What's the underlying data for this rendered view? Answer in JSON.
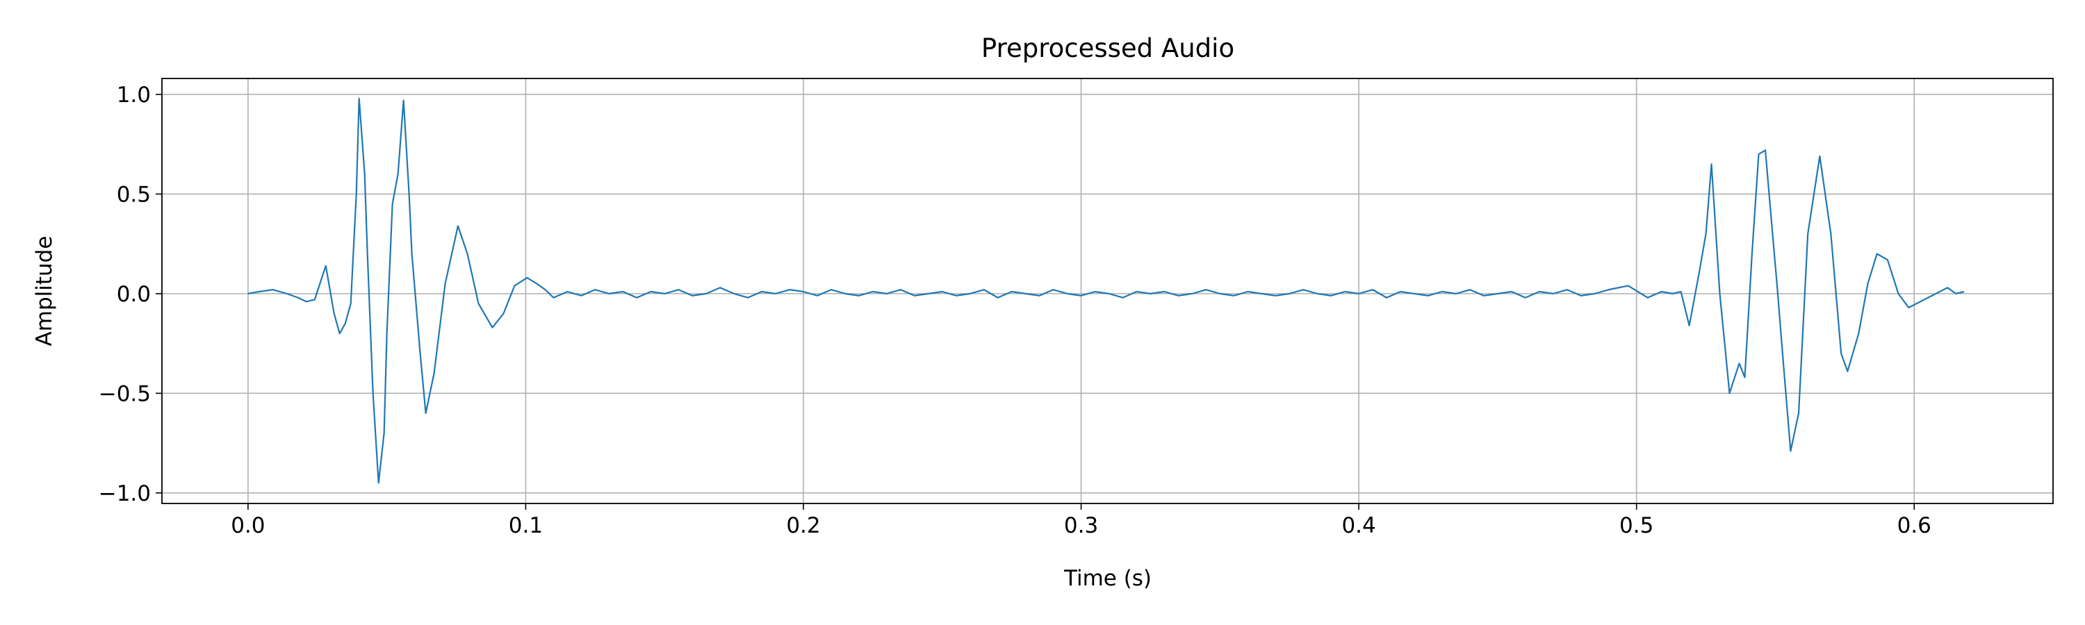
{
  "chart_data": {
    "type": "line",
    "title": "Preprocessed Audio",
    "x_label": "Time (s)",
    "y_label": "Amplitude",
    "color": "#1f77b4",
    "grid": true,
    "xlim": [
      -0.031,
      0.65
    ],
    "ylim": [
      -1.053,
      1.08
    ],
    "xticks": [
      {
        "value": 0,
        "label": "0.0"
      },
      0.1,
      0.2,
      0.3,
      0.4,
      0.5,
      0.6
    ],
    "yticks": [
      {
        "value": -1,
        "label": "−1.0"
      },
      {
        "value": -0.5,
        "label": "−0.5"
      },
      {
        "value": 0,
        "label": "0.0"
      },
      0.5,
      {
        "value": 1,
        "label": "1.0"
      }
    ],
    "x": [
      0,
      0.004,
      0.009,
      0.014,
      0.018,
      0.021,
      0.024,
      0.028,
      0.031,
      0.033,
      0.035,
      0.037,
      0.039,
      0.04,
      0.042,
      0.043,
      0.045,
      0.047,
      0.049,
      0.05,
      0.052,
      0.054,
      0.056,
      0.058,
      0.059,
      0.062,
      0.064,
      0.067,
      0.071,
      0.0756,
      0.079,
      0.083,
      0.088,
      0.092,
      0.096,
      0.1005,
      0.104,
      0.107,
      0.11,
      0.115,
      0.12,
      0.125,
      0.13,
      0.135,
      0.14,
      0.145,
      0.15,
      0.155,
      0.16,
      0.165,
      0.17,
      0.175,
      0.18,
      0.185,
      0.19,
      0.195,
      0.2,
      0.205,
      0.21,
      0.215,
      0.22,
      0.225,
      0.23,
      0.235,
      0.24,
      0.245,
      0.25,
      0.255,
      0.26,
      0.265,
      0.27,
      0.275,
      0.28,
      0.285,
      0.29,
      0.295,
      0.3,
      0.305,
      0.31,
      0.315,
      0.32,
      0.325,
      0.33,
      0.335,
      0.34,
      0.345,
      0.35,
      0.355,
      0.36,
      0.365,
      0.37,
      0.375,
      0.38,
      0.385,
      0.39,
      0.395,
      0.4,
      0.405,
      0.41,
      0.415,
      0.42,
      0.425,
      0.43,
      0.435,
      0.44,
      0.445,
      0.45,
      0.455,
      0.46,
      0.465,
      0.47,
      0.475,
      0.48,
      0.485,
      0.49,
      0.497,
      0.504,
      0.509,
      0.513,
      0.516,
      0.519,
      0.5225,
      0.525,
      0.527,
      0.53,
      0.5335,
      0.537,
      0.539,
      0.5416,
      0.544,
      0.5464,
      0.549,
      0.5507,
      0.5526,
      0.5555,
      0.5584,
      0.5617,
      0.566,
      0.57,
      0.5737,
      0.576,
      0.58,
      0.5833,
      0.5866,
      0.5904,
      0.5943,
      0.598,
      0.605,
      0.612,
      0.615,
      0.618
    ],
    "values": [
      0,
      0.01,
      0.02,
      0.0,
      -0.02,
      -0.04,
      -0.03,
      0.14,
      -0.1,
      -0.2,
      -0.15,
      -0.05,
      0.5,
      0.98,
      0.6,
      0.2,
      -0.5,
      -0.95,
      -0.7,
      -0.2,
      0.45,
      0.6,
      0.97,
      0.5,
      0.2,
      -0.3,
      -0.6,
      -0.4,
      0.05,
      0.34,
      0.2,
      -0.05,
      -0.17,
      -0.1,
      0.04,
      0.08,
      0.05,
      0.02,
      -0.02,
      0.01,
      -0.01,
      0.02,
      0.0,
      0.01,
      -0.02,
      0.01,
      0.0,
      0.02,
      -0.01,
      0.0,
      0.03,
      0.0,
      -0.02,
      0.01,
      0.0,
      0.02,
      0.01,
      -0.01,
      0.02,
      0.0,
      -0.01,
      0.01,
      0.0,
      0.02,
      -0.01,
      0.0,
      0.01,
      -0.01,
      0.0,
      0.02,
      -0.02,
      0.01,
      0.0,
      -0.01,
      0.02,
      0.0,
      -0.01,
      0.01,
      0.0,
      -0.02,
      0.01,
      0.0,
      0.01,
      -0.01,
      0.0,
      0.02,
      0.0,
      -0.01,
      0.01,
      0.0,
      -0.01,
      0.0,
      0.02,
      0.0,
      -0.01,
      0.01,
      0.0,
      0.02,
      -0.02,
      0.01,
      0.0,
      -0.01,
      0.01,
      0.0,
      0.02,
      -0.01,
      0.0,
      0.01,
      -0.02,
      0.01,
      0.0,
      0.02,
      -0.01,
      0.0,
      0.02,
      0.04,
      -0.02,
      0.01,
      0.0,
      0.01,
      -0.16,
      0.1,
      0.3,
      0.65,
      0.0,
      -0.5,
      -0.35,
      -0.42,
      0.2,
      0.7,
      0.72,
      0.3,
      0.03,
      -0.3,
      -0.79,
      -0.6,
      0.3,
      0.69,
      0.3,
      -0.3,
      -0.39,
      -0.2,
      0.05,
      0.2,
      0.17,
      0.0,
      -0.07,
      -0.02,
      0.03,
      0.0,
      0.01
    ]
  }
}
